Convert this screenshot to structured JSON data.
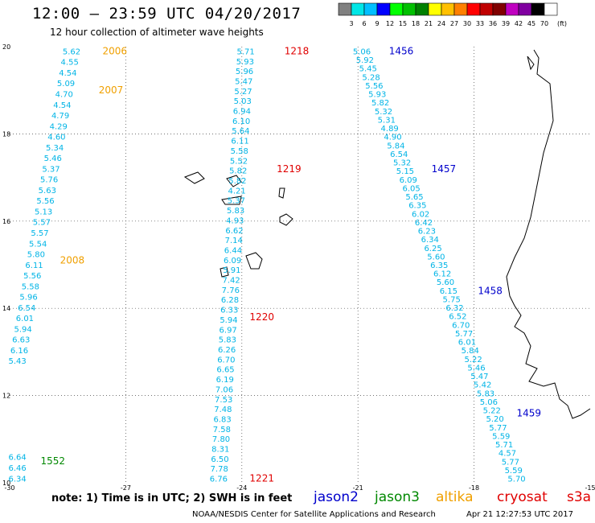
{
  "header": {
    "title": "12:00 – 23:59 UTC 04/20/2017",
    "subtitle": "12 hour collection of altimeter wave heights"
  },
  "colorbar": {
    "labels": [
      "3",
      "6",
      "9",
      "12",
      "15",
      "18",
      "21",
      "24",
      "27",
      "30",
      "33",
      "36",
      "39",
      "42",
      "45",
      "70"
    ],
    "unit": "(ft)",
    "colors": [
      "#808080",
      "#00e6e6",
      "#00bfff",
      "#0000ff",
      "#00ff00",
      "#00c000",
      "#008000",
      "#ffff00",
      "#ffc000",
      "#ff8000",
      "#ff0000",
      "#c00000",
      "#800000",
      "#c000c0",
      "#8000a0",
      "#000000",
      "#ffffff"
    ]
  },
  "axes": {
    "x_ticks": [
      "-30",
      "-27",
      "-24",
      "-21",
      "-18",
      "-15"
    ],
    "y_ticks": [
      "20",
      "18",
      "16",
      "14",
      "12",
      "10"
    ]
  },
  "chart_data": {
    "type": "map",
    "tracks": [
      {
        "color": "#00b4e6",
        "values": [
          "5.62",
          "4.55",
          "4.54",
          "5.09",
          "4.70",
          "4.54",
          "4.79",
          "4.29",
          "4.60",
          "5.34",
          "5.46",
          "5.37",
          "5.76",
          "5.63",
          "5.56",
          "5.13",
          "5.57",
          "5.57",
          "5.54",
          "5.80",
          "6.11",
          "5.56",
          "5.58",
          "5.96",
          "6.54",
          "6.01",
          "5.94",
          "6.63",
          "6.16",
          "5.43"
        ],
        "lon_start": -28.4,
        "lat_start": 19.9,
        "lon_end": -29.8,
        "lat_end": 12.8
      },
      {
        "color": "#00b4e6",
        "values": [
          "5.71",
          "5.93",
          "5.96",
          "5.47",
          "5.27",
          "5.03",
          "6.94",
          "6.10",
          "5.64",
          "6.11",
          "5.58",
          "5.52",
          "5.82",
          "5.82",
          "4.21",
          "5.37",
          "5.83",
          "4.93",
          "6.62",
          "7.14",
          "6.44",
          "6.09",
          "5.91",
          "7.42",
          "7.76",
          "6.28",
          "6.33",
          "5.94",
          "6.97",
          "5.83",
          "6.26",
          "6.70",
          "6.65",
          "6.19",
          "7.06",
          "7.53",
          "7.48",
          "6.83",
          "7.58",
          "7.80",
          "8.31",
          "6.50",
          "7.78",
          "6.76"
        ],
        "lon_start": -23.9,
        "lat_start": 19.9,
        "lon_end": -24.6,
        "lat_end": 10.1
      },
      {
        "color": "#00b4e6",
        "values": [
          "5.06",
          "5.92",
          "5.45",
          "5.28",
          "5.56",
          "5.93",
          "5.82",
          "5.32",
          "5.31",
          "4.89",
          "4.90",
          "5.84",
          "6.54",
          "5.32",
          "5.15",
          "6.09",
          "6.05",
          "5.65",
          "6.35",
          "6.02",
          "6.42",
          "6.23",
          "6.34",
          "6.25",
          "5.60",
          "6.35",
          "6.12",
          "5.60",
          "6.15",
          "5.75",
          "6.32",
          "6.52",
          "6.70",
          "5.77",
          "6.01",
          "5.84",
          "5.22",
          "5.46",
          "5.47",
          "5.42",
          "5.83",
          "5.06",
          "5.22",
          "5.20",
          "5.77",
          "5.59",
          "5.71",
          "4.57",
          "5.77",
          "5.59",
          "5.70"
        ],
        "lon_start": -20.9,
        "lat_start": 19.9,
        "lon_end": -16.9,
        "lat_end": 10.1
      },
      {
        "color": "#00b4e6",
        "values": [
          "6.64",
          "6.46",
          "6.34"
        ],
        "lon_start": -29.8,
        "lat_start": 10.6,
        "lon_end": -29.8,
        "lat_end": 10.1
      }
    ],
    "time_labels": [
      {
        "text": "2006",
        "color": "#f0a000",
        "lon": -27.6,
        "lat": 19.9
      },
      {
        "text": "2007",
        "color": "#f0a000",
        "lon": -27.7,
        "lat": 19.0
      },
      {
        "text": "2008",
        "color": "#f0a000",
        "lon": -28.7,
        "lat": 15.1
      },
      {
        "text": "1552",
        "color": "#008800",
        "lon": -29.2,
        "lat": 10.5
      },
      {
        "text": "1218",
        "color": "#e00000",
        "lon": -22.9,
        "lat": 19.9
      },
      {
        "text": "1219",
        "color": "#e00000",
        "lon": -23.1,
        "lat": 17.2
      },
      {
        "text": "1220",
        "color": "#e00000",
        "lon": -23.8,
        "lat": 13.8
      },
      {
        "text": "1221",
        "color": "#e00000",
        "lon": -23.8,
        "lat": 10.1
      },
      {
        "text": "1456",
        "color": "#0000cc",
        "lon": -20.2,
        "lat": 19.9
      },
      {
        "text": "1457",
        "color": "#0000cc",
        "lon": -19.1,
        "lat": 17.2
      },
      {
        "text": "1458",
        "color": "#0000cc",
        "lon": -17.9,
        "lat": 14.4
      },
      {
        "text": "1459",
        "color": "#0000cc",
        "lon": -16.9,
        "lat": 11.6
      }
    ],
    "xlim": [
      -30,
      -15
    ],
    "ylim": [
      10,
      20
    ]
  },
  "legend": {
    "note": "note:  1) Time is in UTC;  2) SWH is in feet",
    "satellites": [
      {
        "name": "jason2",
        "color": "#0000cc"
      },
      {
        "name": "jason3",
        "color": "#008800"
      },
      {
        "name": "altika",
        "color": "#f0a000"
      },
      {
        "name": "cryosat",
        "color": "#e00000"
      },
      {
        "name": "s3a",
        "color": "#e00000"
      }
    ],
    "footer": "NOAA/NESDIS Center for Satellite Applications and Research",
    "timestamp": "Apr 21 12:27:53 UTC 2017"
  }
}
